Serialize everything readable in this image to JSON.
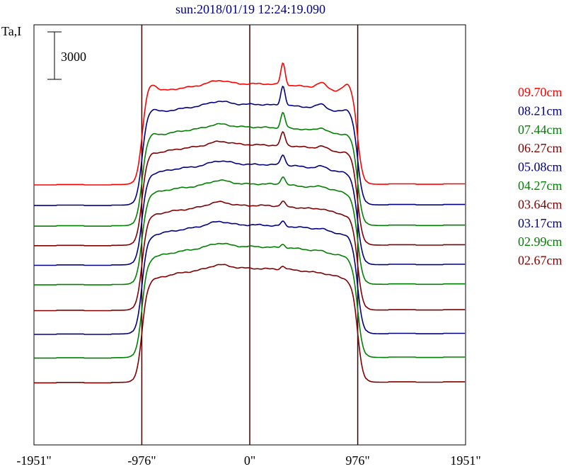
{
  "chart_data": {
    "type": "line",
    "title": "sun:2018/01/19 12:24:19.090",
    "ylabel": "Ta,I",
    "scale_bar_label": "3000",
    "scale_bar_value": 3000,
    "x_ticks": [
      "-1951\"",
      "-976\"",
      "0\"",
      "976\"",
      "1951\""
    ],
    "x_tick_values": [
      -1951,
      -976,
      0,
      976,
      1951
    ],
    "xlim": [
      -1951,
      1951
    ],
    "vlines": [
      -976,
      0,
      976
    ],
    "legend_position": "right",
    "series": [
      {
        "name": "09.70cm",
        "color": "#ff0000",
        "baseline": 0,
        "amp": 9800,
        "peak": 2100,
        "limb": 1100
      },
      {
        "name": "08.21cm",
        "color": "#000080",
        "baseline": -2000,
        "amp": 9800,
        "peak": 1900,
        "limb": 600
      },
      {
        "name": "07.44cm",
        "color": "#008000",
        "baseline": -4000,
        "amp": 9600,
        "peak": 1500,
        "limb": 350
      },
      {
        "name": "06.27cm",
        "color": "#800000",
        "baseline": -5900,
        "amp": 9800,
        "peak": 1300,
        "limb": 250
      },
      {
        "name": "05.08cm",
        "color": "#000080",
        "baseline": -7800,
        "amp": 9800,
        "peak": 1000,
        "limb": 120
      },
      {
        "name": "04.27cm",
        "color": "#008000",
        "baseline": -9700,
        "amp": 9800,
        "peak": 800,
        "limb": 100
      },
      {
        "name": "03.64cm",
        "color": "#800000",
        "baseline": -12200,
        "amp": 10200,
        "peak": 500,
        "limb": 80
      },
      {
        "name": "03.17cm",
        "color": "#000080",
        "baseline": -14500,
        "amp": 10600,
        "peak": 450,
        "limb": 60
      },
      {
        "name": "02.99cm",
        "color": "#008000",
        "baseline": -16800,
        "amp": 10800,
        "peak": 350,
        "limb": 50
      },
      {
        "name": "02.67cm",
        "color": "#800000",
        "baseline": -19200,
        "amp": 11100,
        "peak": 300,
        "limb": 40
      }
    ]
  }
}
